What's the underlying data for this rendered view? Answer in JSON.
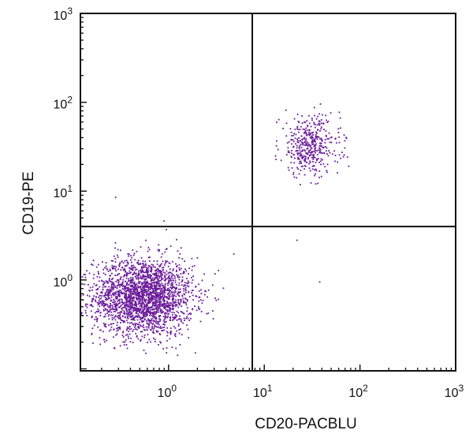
{
  "chart_data": {
    "type": "scatter",
    "xlabel": "CD20-PACBLU",
    "ylabel": "CD19-PE",
    "x_scale": "log",
    "y_scale": "log",
    "xlim": [
      0.12,
      1000
    ],
    "ylim": [
      0.095,
      1000
    ],
    "x_ticks": [
      {
        "value": 1,
        "base": "10",
        "exp": "0"
      },
      {
        "value": 10,
        "base": "10",
        "exp": "1"
      },
      {
        "value": 100,
        "base": "10",
        "exp": "2"
      },
      {
        "value": 1000,
        "base": "10",
        "exp": "3"
      }
    ],
    "y_ticks": [
      {
        "value": 1,
        "base": "10",
        "exp": "0"
      },
      {
        "value": 10,
        "base": "10",
        "exp": "1"
      },
      {
        "value": 100,
        "base": "10",
        "exp": "2"
      },
      {
        "value": 1000,
        "base": "10",
        "exp": "3"
      }
    ],
    "quadrant_gates": {
      "x": 7.5,
      "y": 4.0
    },
    "point_color": "#6a1b9a",
    "populations": [
      {
        "center": [
          0.55,
          0.65
        ],
        "log_spread": [
          0.26,
          0.22
        ],
        "count": 2300,
        "x_range": [
          0.12,
          6.5
        ],
        "y_range": [
          0.1,
          3.5
        ]
      },
      {
        "center": [
          30,
          32
        ],
        "log_spread": [
          0.16,
          0.17
        ],
        "count": 420,
        "x_range": [
          12,
          90
        ],
        "y_range": [
          7,
          120
        ]
      }
    ],
    "outliers": [
      [
        0.28,
        8.5
      ],
      [
        0.9,
        4.6
      ],
      [
        0.95,
        3.7
      ],
      [
        22,
        2.8
      ],
      [
        38,
        0.95
      ]
    ]
  }
}
